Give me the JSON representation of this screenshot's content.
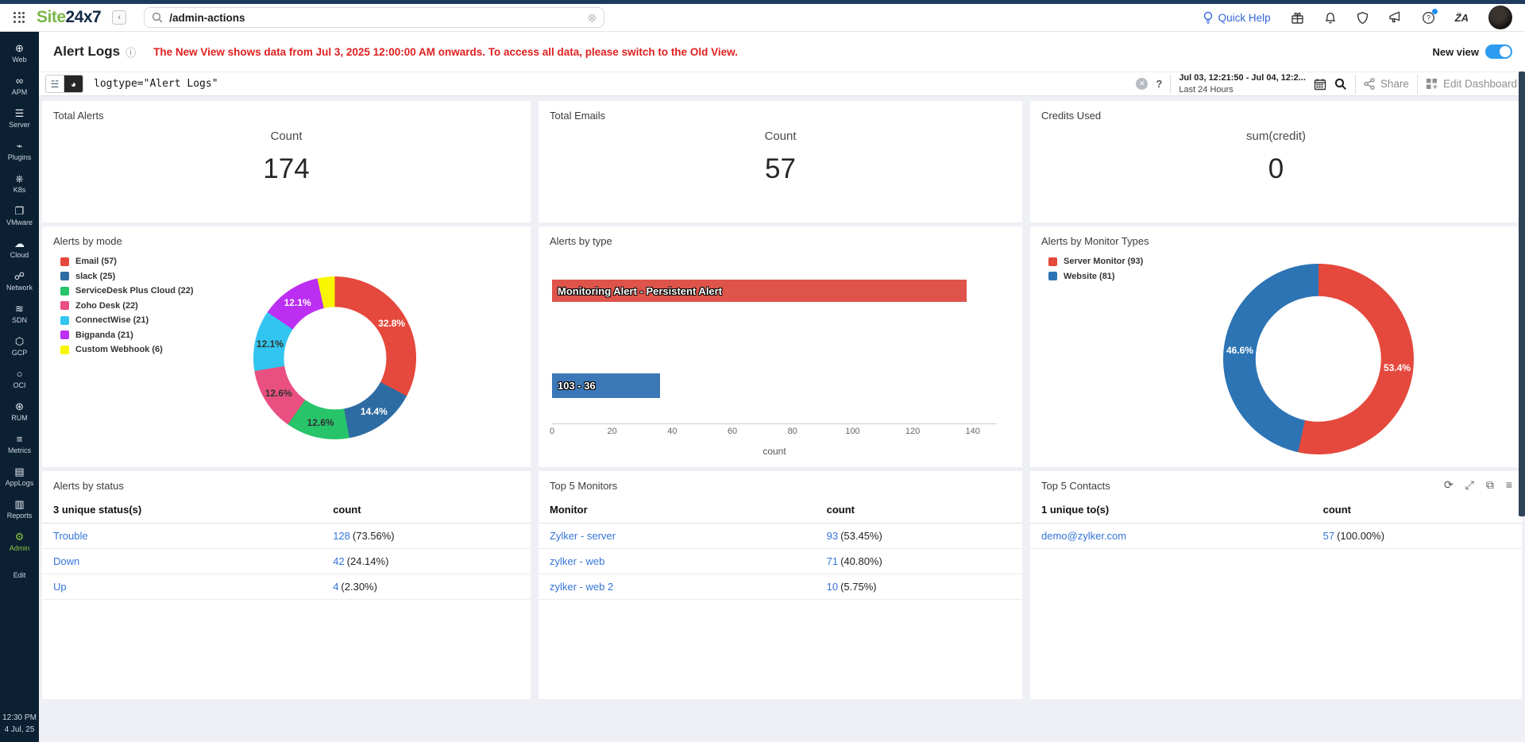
{
  "topbar": {
    "logo_site": "Site",
    "logo_247": "24x7",
    "search_value": "/admin-actions",
    "quick_help": "Quick Help"
  },
  "sidebar": {
    "items": [
      {
        "id": "web",
        "label": "Web",
        "icon": "globe"
      },
      {
        "id": "apm",
        "label": "APM",
        "icon": "binoculars"
      },
      {
        "id": "server",
        "label": "Server",
        "icon": "server"
      },
      {
        "id": "plugins",
        "label": "Plugins",
        "icon": "plug"
      },
      {
        "id": "k8s",
        "label": "K8s",
        "icon": "kubernetes"
      },
      {
        "id": "vmware",
        "label": "VMware",
        "icon": "vmware"
      },
      {
        "id": "cloud",
        "label": "Cloud",
        "icon": "cloud"
      },
      {
        "id": "network",
        "label": "Network",
        "icon": "network"
      },
      {
        "id": "sdn",
        "label": "SDN",
        "icon": "sdn"
      },
      {
        "id": "gcp",
        "label": "GCP",
        "icon": "gcp"
      },
      {
        "id": "oci",
        "label": "OCI",
        "icon": "oci"
      },
      {
        "id": "rum",
        "label": "RUM",
        "icon": "rum"
      },
      {
        "id": "metrics",
        "label": "Metrics",
        "icon": "metrics"
      },
      {
        "id": "applogs",
        "label": "AppLogs",
        "icon": "applogs"
      },
      {
        "id": "reports",
        "label": "Reports",
        "icon": "reports"
      },
      {
        "id": "admin",
        "label": "Admin",
        "icon": "gear",
        "active": true
      },
      {
        "id": "edit",
        "label": "Edit",
        "icon": ""
      }
    ],
    "clock": {
      "time": "12:30 PM",
      "date": "4 Jul, 25"
    }
  },
  "header": {
    "title": "Alert Logs",
    "warning": "The New View shows data from Jul 3, 2025 12:00:00 AM onwards. To access all data, please switch to the Old View.",
    "new_view_label": "New view"
  },
  "querybar": {
    "query": "logtype=\"Alert Logs\"",
    "date_range": "Jul 03, 12:21:50 - Jul 04, 12:2...",
    "range_label": "Last 24 Hours",
    "share_label": "Share",
    "edit_dashboard_label": "Edit Dashboard"
  },
  "kpis": [
    {
      "title": "Total Alerts",
      "metric": "Count",
      "value": "174"
    },
    {
      "title": "Total Emails",
      "metric": "Count",
      "value": "57"
    },
    {
      "title": "Credits Used",
      "metric": "sum(credit)",
      "value": "0"
    }
  ],
  "chart_data": [
    {
      "type": "pie",
      "subtype": "donut",
      "title": "Alerts by mode",
      "legend_position": "left",
      "series": [
        {
          "label": "Email",
          "value": 57,
          "pct": "32.8%",
          "color": "#e5483c",
          "label_color": "#ffffff"
        },
        {
          "label": "slack",
          "value": 25,
          "pct": "14.4%",
          "color": "#2d6ba3",
          "label_color": "#ffffff"
        },
        {
          "label": "ServiceDesk Plus Cloud",
          "value": 22,
          "pct": "12.6%",
          "color": "#27c469",
          "label_color": "#333333"
        },
        {
          "label": "Zoho Desk",
          "value": 22,
          "pct": "12.6%",
          "color": "#e94f80",
          "label_color": "#333333"
        },
        {
          "label": "ConnectWise",
          "value": 21,
          "pct": "12.1%",
          "color": "#32c5ef",
          "label_color": "#333333"
        },
        {
          "label": "Bigpanda",
          "value": 21,
          "pct": "12.1%",
          "color": "#bc2ef2",
          "label_color": "#ffffff"
        },
        {
          "label": "Custom Webhook",
          "value": 6,
          "pct": "",
          "color": "#f9f602",
          "label_color": "#333333"
        }
      ]
    },
    {
      "type": "bar",
      "orientation": "horizontal",
      "title": "Alerts by type",
      "bars": [
        {
          "label": "Monitoring Alert - Persistent Alert",
          "value": 138,
          "color": "#de544b"
        },
        {
          "label": "103 - 36",
          "value": 36,
          "color": "#3c78b7"
        }
      ],
      "xticks": [
        0,
        20,
        40,
        60,
        80,
        100,
        120,
        140
      ],
      "xmax": 148,
      "xlabel": "count",
      "grid": false
    },
    {
      "type": "pie",
      "subtype": "donut",
      "title": "Alerts by Monitor Types",
      "legend_position": "left",
      "series": [
        {
          "label": "Server Monitor",
          "value": 93,
          "pct": "53.4%",
          "color": "#e5483c",
          "label_color": "#ffffff"
        },
        {
          "label": "Website",
          "value": 81,
          "pct": "46.6%",
          "color": "#2d74b5",
          "label_color": "#ffffff"
        }
      ]
    }
  ],
  "tables": [
    {
      "title": "Alerts by status",
      "columns": [
        "3 unique status(s)",
        "count"
      ],
      "rows": [
        {
          "label": "Trouble",
          "count": "128",
          "pct": "(73.56%)"
        },
        {
          "label": "Down",
          "count": "42",
          "pct": "(24.14%)"
        },
        {
          "label": "Up",
          "count": "4",
          "pct": "(2.30%)"
        }
      ]
    },
    {
      "title": "Top 5 Monitors",
      "columns": [
        "Monitor",
        "count"
      ],
      "rows": [
        {
          "label": "Zylker - server",
          "count": "93",
          "pct": "(53.45%)"
        },
        {
          "label": "zylker - web",
          "count": "71",
          "pct": "(40.80%)"
        },
        {
          "label": "zylker - web 2",
          "count": "10",
          "pct": "(5.75%)"
        }
      ]
    },
    {
      "title": "Top 5 Contacts",
      "columns": [
        "1 unique to(s)",
        "count"
      ],
      "rows": [
        {
          "label": "demo@zylker.com",
          "count": "57",
          "pct": "(100.00%)"
        }
      ],
      "has_actions": true
    }
  ],
  "colors": {
    "sidebar_bg": "#0c2033",
    "brand_green": "#7ab648",
    "admin_green": "#8bc63f",
    "link_blue": "#3474d9",
    "warning_red": "#e02020",
    "toggle_blue": "#2d9bf0",
    "topstrip_navy": "#1e3a60"
  }
}
